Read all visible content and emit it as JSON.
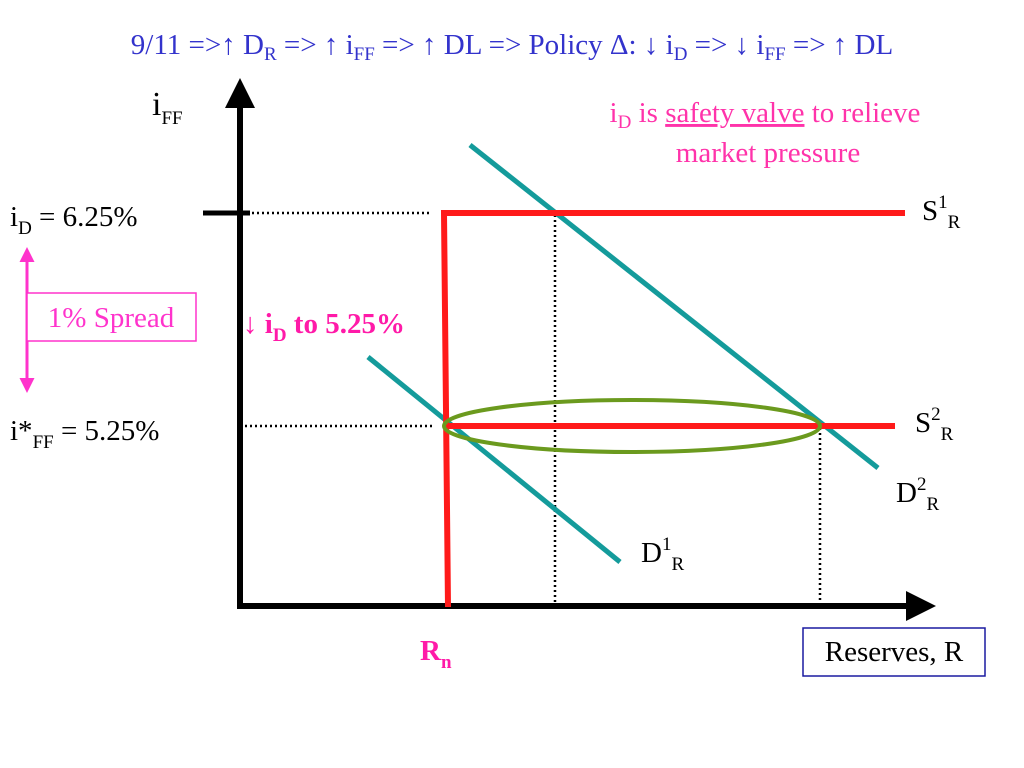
{
  "title": [
    "9/11 =>",
    "↑ D",
    "R",
    " => ↑ i",
    "FF",
    " => ↑ DL => Policy Δ: ↓ i",
    "D",
    " => ↓ i",
    "FF",
    " => ↑ DL"
  ],
  "y_axis_label": [
    "i",
    "FF"
  ],
  "x_axis_label": "Reserves, R",
  "annotation": {
    "line1": [
      "i",
      "D",
      " is ",
      "safety valve",
      " to relieve"
    ],
    "line2": "market pressure"
  },
  "discount_rate_label": [
    "i",
    "D",
    " = 6.25%"
  ],
  "spread_label": "1% Spread",
  "target_rate_label": [
    "i*",
    "FF",
    " = 5.25%"
  ],
  "policy_label": [
    "↓ i",
    "D",
    " to 5.25%"
  ],
  "curves": {
    "s1": [
      "S",
      "1",
      "R"
    ],
    "s2": [
      "S",
      "2",
      "R"
    ],
    "d1": [
      "D",
      "1",
      "R"
    ],
    "d2": [
      "D",
      "2",
      "R"
    ]
  },
  "reserves_label": [
    "R",
    "n"
  ]
}
